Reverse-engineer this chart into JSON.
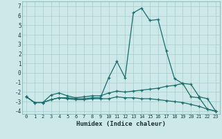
{
  "xlabel": "Humidex (Indice chaleur)",
  "background_color": "#cce8e8",
  "grid_color": "#aacccc",
  "line_color": "#1a6b6b",
  "x_values": [
    0,
    1,
    2,
    3,
    4,
    5,
    6,
    7,
    8,
    9,
    10,
    11,
    12,
    13,
    14,
    15,
    16,
    17,
    18,
    19,
    20,
    21,
    22,
    23
  ],
  "line1_y": [
    -2.5,
    -3.1,
    -3.1,
    -2.8,
    -2.6,
    -2.7,
    -2.8,
    -2.8,
    -2.7,
    -2.7,
    -2.7,
    -2.5,
    -2.6,
    -2.6,
    -2.7,
    -2.7,
    -2.8,
    -2.9,
    -3.0,
    -3.1,
    -3.3,
    -3.5,
    -3.8,
    -4.0
  ],
  "line2_y": [
    -2.5,
    -3.1,
    -3.1,
    -2.8,
    -2.6,
    -2.6,
    -2.7,
    -2.7,
    -2.6,
    -2.6,
    -0.5,
    1.2,
    -0.5,
    6.3,
    6.8,
    5.5,
    5.6,
    2.3,
    -0.6,
    -1.1,
    -2.5,
    -2.6,
    -3.8,
    -4.0
  ],
  "line3_y": [
    -2.5,
    -3.1,
    -3.1,
    -2.3,
    -2.1,
    -2.4,
    -2.6,
    -2.5,
    -2.4,
    -2.4,
    -2.1,
    -1.9,
    -2.0,
    -1.9,
    -1.8,
    -1.7,
    -1.6,
    -1.4,
    -1.3,
    -1.1,
    -1.2,
    -2.5,
    -2.7,
    -4.0
  ],
  "ylim": [
    -4.3,
    7.5
  ],
  "xlim": [
    -0.5,
    23.5
  ],
  "yticks": [
    -4,
    -3,
    -2,
    -1,
    0,
    1,
    2,
    3,
    4,
    5,
    6,
    7
  ],
  "xticks": [
    0,
    1,
    2,
    3,
    4,
    5,
    6,
    7,
    8,
    9,
    10,
    11,
    12,
    13,
    14,
    15,
    16,
    17,
    18,
    19,
    20,
    21,
    22,
    23
  ]
}
